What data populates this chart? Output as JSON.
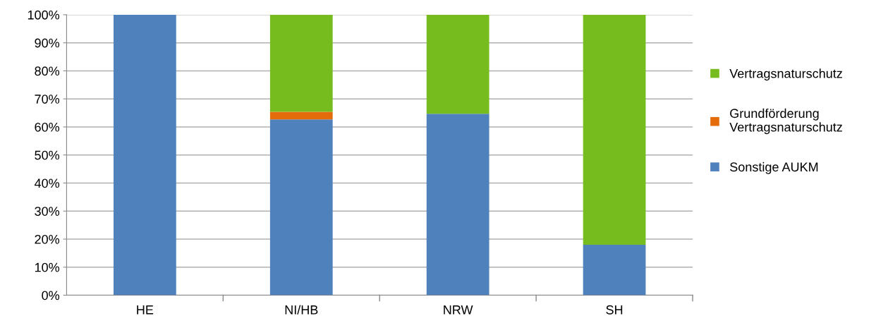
{
  "chart_data": {
    "type": "bar",
    "stacked": true,
    "categories": [
      "HE",
      "NI/HB",
      "NRW",
      "SH"
    ],
    "series": [
      {
        "name": "Sonstige AUKM",
        "color": "#4f81bd",
        "values": [
          100,
          62.7,
          64.7,
          18
        ]
      },
      {
        "name": "Grundförderung\nVertragsnaturschutz",
        "color": "#e46c0a",
        "values": [
          0,
          2.7,
          0,
          0
        ]
      },
      {
        "name": "Vertragsnaturschutz",
        "color": "#77bc1f",
        "values": [
          0,
          34.6,
          35.3,
          82
        ]
      }
    ],
    "ylim": [
      0,
      100
    ],
    "yticks": [
      {
        "value": 0,
        "label": "0%"
      },
      {
        "value": 10,
        "label": "10%"
      },
      {
        "value": 20,
        "label": "20%"
      },
      {
        "value": 30,
        "label": "30%"
      },
      {
        "value": 40,
        "label": "40%"
      },
      {
        "value": 50,
        "label": "50%"
      },
      {
        "value": 60,
        "label": "60%"
      },
      {
        "value": 70,
        "label": "70%"
      },
      {
        "value": 80,
        "label": "80%"
      },
      {
        "value": 90,
        "label": "90%"
      },
      {
        "value": 100,
        "label": "100%"
      }
    ],
    "grid": "y",
    "legend": "right"
  }
}
